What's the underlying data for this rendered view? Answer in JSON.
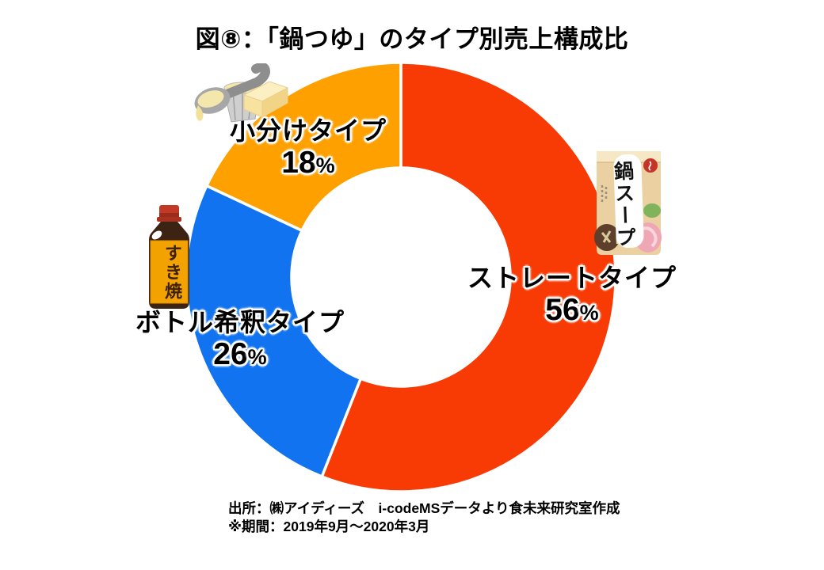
{
  "page": {
    "title": "図⑧：「鍋つゆ」のタイプ別売上構成比",
    "background": "#FFFFFF"
  },
  "chart_data": {
    "type": "pie",
    "subtype": "donut",
    "title": "図⑧：「鍋つゆ」のタイプ別売上構成比",
    "unit": "%",
    "percent_symbol": "%",
    "start_angle_deg": 0,
    "direction": "clockwise",
    "inner_radius_ratio": 0.51,
    "legend_position": "labels-on-chart",
    "grid": false,
    "categories": [
      "ストレートタイプ",
      "ボトル希釈タイプ",
      "小分けタイプ"
    ],
    "values": [
      56,
      26,
      18
    ],
    "segments": [
      {
        "key": "straight",
        "label": "ストレートタイプ",
        "value": 56,
        "color": "#F83A05"
      },
      {
        "key": "bottle-dilute",
        "label": "ボトル希釈タイプ",
        "value": 26,
        "color": "#1173EF"
      },
      {
        "key": "portioned",
        "label": "小分けタイプ",
        "value": 18,
        "color": "#FEA100"
      }
    ]
  },
  "footer": {
    "source": "出所：㈱アイディーズ　i-codeMSデータより食未来研究室作成",
    "period": "※期間：2019年9月～2020年3月"
  },
  "illustrations": {
    "soup_pouch_label": "鍋スープ",
    "sukiyaki_bottle_label": "すき焼"
  }
}
